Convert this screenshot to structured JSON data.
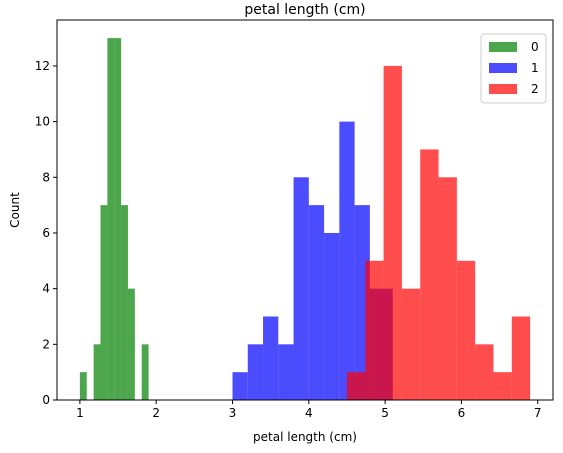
{
  "chart_data": {
    "type": "bar",
    "title": "petal length (cm)",
    "xlabel": "petal length (cm)",
    "ylabel": "Count",
    "xlim": [
      0.7,
      7.2
    ],
    "ylim": [
      0,
      13.65
    ],
    "xticks": [
      1,
      2,
      3,
      4,
      5,
      6,
      7
    ],
    "yticks": [
      0,
      2,
      4,
      6,
      8,
      10,
      12
    ],
    "grid": false,
    "legend_position": "top-right",
    "series": [
      {
        "name": "0",
        "color": "#008000",
        "opacity": 0.7,
        "bins": [
          {
            "x0": 1.0,
            "x1": 1.09,
            "count": 1
          },
          {
            "x0": 1.09,
            "x1": 1.18,
            "count": 0
          },
          {
            "x0": 1.18,
            "x1": 1.27,
            "count": 2
          },
          {
            "x0": 1.27,
            "x1": 1.36,
            "count": 7
          },
          {
            "x0": 1.36,
            "x1": 1.45,
            "count": 13
          },
          {
            "x0": 1.45,
            "x1": 1.54,
            "count": 13
          },
          {
            "x0": 1.54,
            "x1": 1.63,
            "count": 7
          },
          {
            "x0": 1.63,
            "x1": 1.72,
            "count": 4
          },
          {
            "x0": 1.72,
            "x1": 1.81,
            "count": 0
          },
          {
            "x0": 1.81,
            "x1": 1.9,
            "count": 2
          }
        ]
      },
      {
        "name": "1",
        "color": "#0000ff",
        "opacity": 0.7,
        "bins": [
          {
            "x0": 3.0,
            "x1": 3.2,
            "count": 1
          },
          {
            "x0": 3.2,
            "x1": 3.4,
            "count": 2
          },
          {
            "x0": 3.4,
            "x1": 3.6,
            "count": 3
          },
          {
            "x0": 3.6,
            "x1": 3.8,
            "count": 2
          },
          {
            "x0": 3.8,
            "x1": 4.0,
            "count": 8
          },
          {
            "x0": 4.0,
            "x1": 4.2,
            "count": 7
          },
          {
            "x0": 4.2,
            "x1": 4.4,
            "count": 6
          },
          {
            "x0": 4.4,
            "x1": 4.6,
            "count": 10
          },
          {
            "x0": 4.6,
            "x1": 4.8,
            "count": 7
          },
          {
            "x0": 4.8,
            "x1": 5.1,
            "count": 4
          }
        ]
      },
      {
        "name": "2",
        "color": "#ff0000",
        "opacity": 0.7,
        "bins": [
          {
            "x0": 4.5,
            "x1": 4.74,
            "count": 1
          },
          {
            "x0": 4.74,
            "x1": 4.98,
            "count": 5
          },
          {
            "x0": 4.98,
            "x1": 5.22,
            "count": 12
          },
          {
            "x0": 5.22,
            "x1": 5.46,
            "count": 4
          },
          {
            "x0": 5.46,
            "x1": 5.7,
            "count": 9
          },
          {
            "x0": 5.7,
            "x1": 5.94,
            "count": 8
          },
          {
            "x0": 5.94,
            "x1": 6.18,
            "count": 5
          },
          {
            "x0": 6.18,
            "x1": 6.42,
            "count": 2
          },
          {
            "x0": 6.42,
            "x1": 6.66,
            "count": 1
          },
          {
            "x0": 6.66,
            "x1": 6.9,
            "count": 3
          }
        ]
      }
    ]
  }
}
